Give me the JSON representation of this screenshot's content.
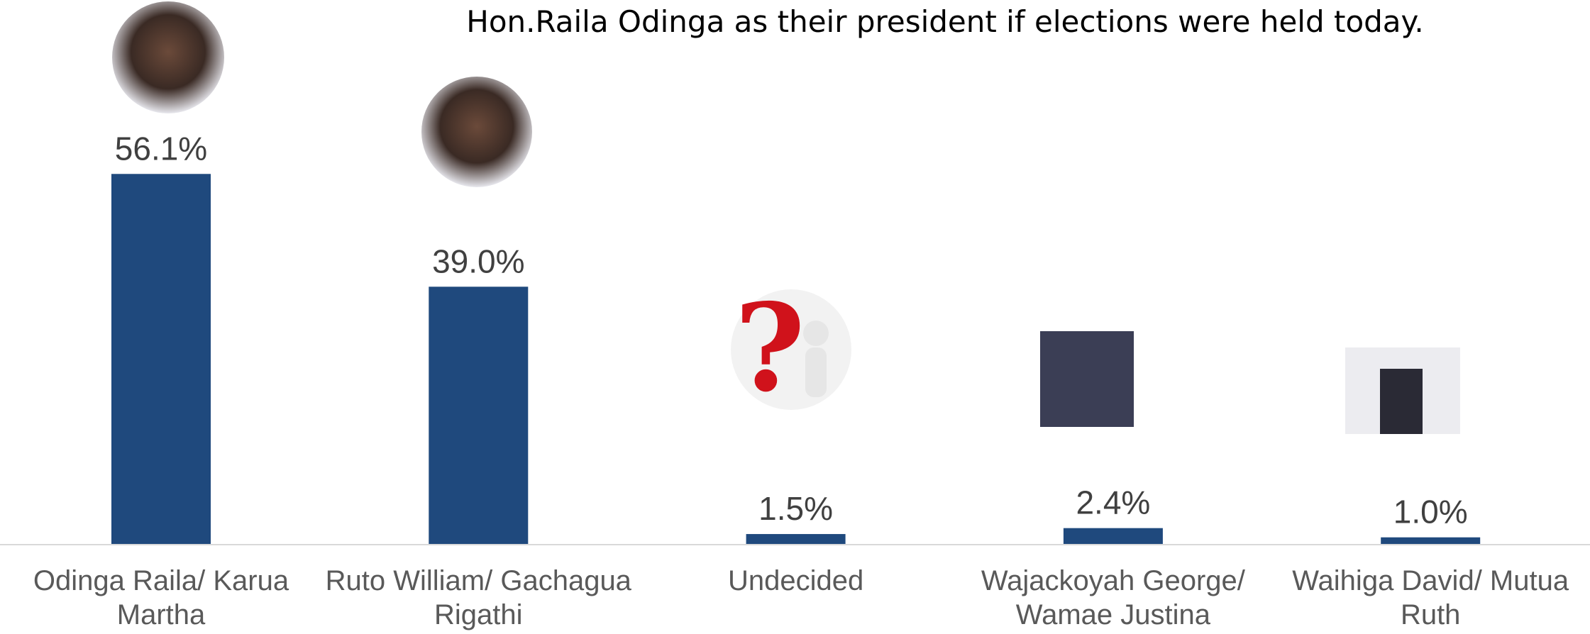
{
  "chart_data": {
    "type": "bar",
    "title": "Hon.Raila Odinga as their president if elections were held today.",
    "categories": [
      "Odinga Raila/ Karua Martha",
      "Ruto William/ Gachagua Rigathi",
      "Undecided",
      "Wajackoyah George/ Wamae Justina",
      "Waihiga David/ Mutua Ruth"
    ],
    "values": [
      56.1,
      39.0,
      1.5,
      2.4,
      1.0
    ],
    "value_labels": [
      "56.1%",
      "39.0%",
      "1.5%",
      "2.4%",
      "1.0%"
    ],
    "color": "#1f497d"
  }
}
